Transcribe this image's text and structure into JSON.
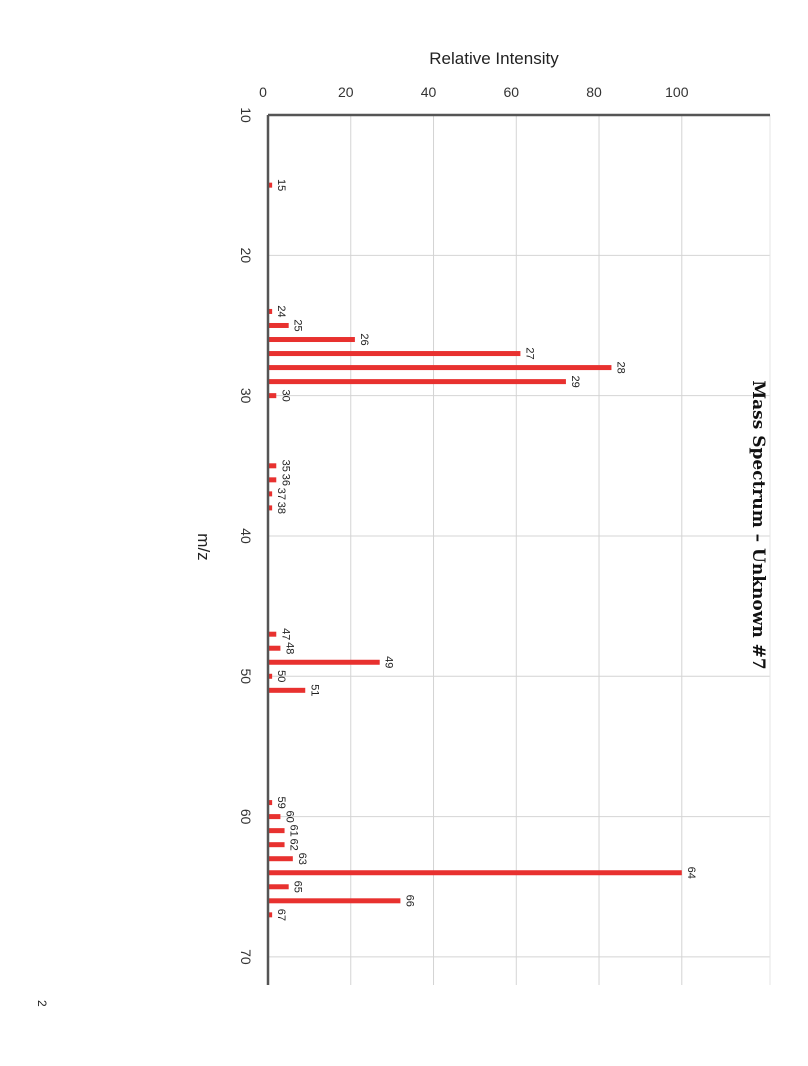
{
  "page": {
    "page_number": "2"
  },
  "chart_data": {
    "type": "bar",
    "title": "Mass Spectrum – Unknown #7",
    "xlabel": "m/z",
    "ylabel": "Relative Intensity",
    "xlim": [
      10,
      72
    ],
    "ylim": [
      0,
      116
    ],
    "x_ticks": [
      10,
      20,
      30,
      40,
      50,
      60,
      70
    ],
    "y_ticks": [
      0,
      20,
      40,
      60,
      80,
      100
    ],
    "grid": true,
    "orientation": "rotated-90-clockwise",
    "bar_color": "#e8312f",
    "peaks": [
      {
        "mz": 15,
        "intensity": 1
      },
      {
        "mz": 24,
        "intensity": 1
      },
      {
        "mz": 25,
        "intensity": 5
      },
      {
        "mz": 26,
        "intensity": 21
      },
      {
        "mz": 27,
        "intensity": 61
      },
      {
        "mz": 28,
        "intensity": 83
      },
      {
        "mz": 29,
        "intensity": 72
      },
      {
        "mz": 30,
        "intensity": 2
      },
      {
        "mz": 35,
        "intensity": 2
      },
      {
        "mz": 36,
        "intensity": 2
      },
      {
        "mz": 37,
        "intensity": 1
      },
      {
        "mz": 38,
        "intensity": 1
      },
      {
        "mz": 47,
        "intensity": 2
      },
      {
        "mz": 48,
        "intensity": 3
      },
      {
        "mz": 49,
        "intensity": 27
      },
      {
        "mz": 50,
        "intensity": 1
      },
      {
        "mz": 51,
        "intensity": 9
      },
      {
        "mz": 59,
        "intensity": 1
      },
      {
        "mz": 60,
        "intensity": 3
      },
      {
        "mz": 61,
        "intensity": 4
      },
      {
        "mz": 62,
        "intensity": 4
      },
      {
        "mz": 63,
        "intensity": 6
      },
      {
        "mz": 64,
        "intensity": 100
      },
      {
        "mz": 65,
        "intensity": 5
      },
      {
        "mz": 66,
        "intensity": 32
      },
      {
        "mz": 67,
        "intensity": 1
      }
    ]
  }
}
